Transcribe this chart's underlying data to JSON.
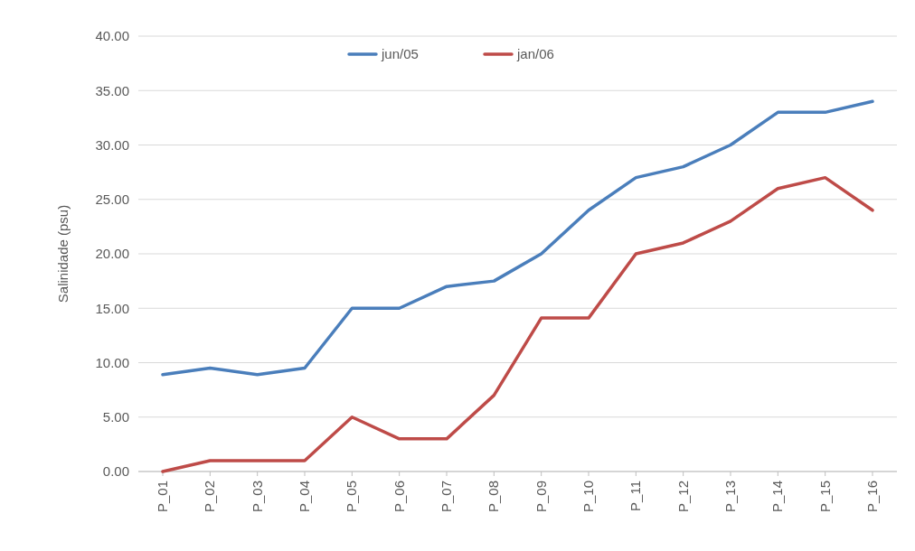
{
  "chart_data": {
    "type": "line",
    "ylabel": "Salinidade (psu)",
    "categories": [
      "P_01",
      "P_02",
      "P_03",
      "P_04",
      "P_05",
      "P_06",
      "P_07",
      "P_08",
      "P_09",
      "P_10",
      "P_11",
      "P_12",
      "P_13",
      "P_14",
      "P_15",
      "P_16"
    ],
    "series": [
      {
        "name": "jun/05",
        "color": "#4a7ebb",
        "values": [
          8.9,
          9.5,
          8.9,
          9.5,
          15,
          15,
          17,
          17.5,
          20,
          24,
          27,
          28,
          30,
          33,
          33,
          34
        ]
      },
      {
        "name": "jan/06",
        "color": "#be4b48",
        "values": [
          0,
          1,
          1,
          1,
          5,
          3,
          3,
          7,
          14.1,
          14.1,
          20,
          21,
          23,
          26,
          27,
          24
        ]
      }
    ],
    "ylim": [
      0,
      40
    ],
    "yticks": [
      {
        "value": 0,
        "label": "0.00"
      },
      {
        "value": 5,
        "label": "5.00"
      },
      {
        "value": 10,
        "label": "10.00"
      },
      {
        "value": 15,
        "label": "15.00"
      },
      {
        "value": 20,
        "label": "20.00"
      },
      {
        "value": 25,
        "label": "25.00"
      },
      {
        "value": 30,
        "label": "30.00"
      },
      {
        "value": 35,
        "label": "35.00"
      },
      {
        "value": 40,
        "label": "40.00"
      }
    ],
    "grid": "y",
    "legend": "top",
    "marker": "none",
    "line_style": "solid"
  }
}
